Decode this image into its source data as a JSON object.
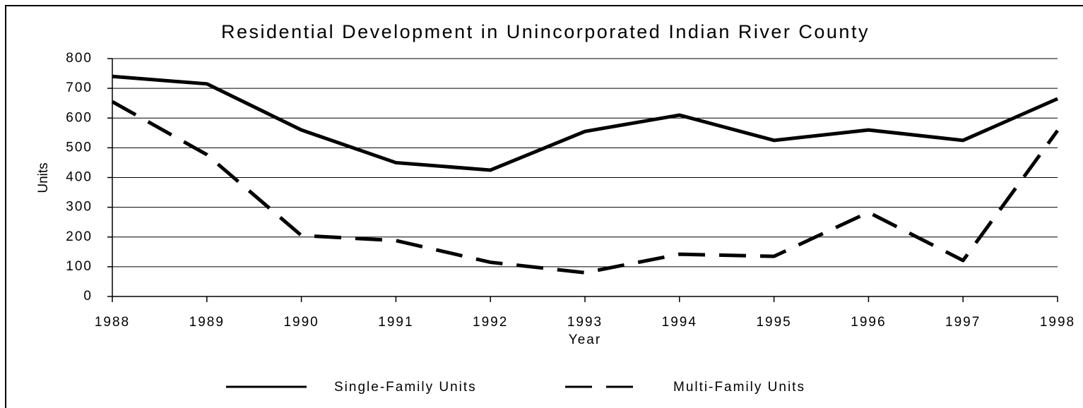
{
  "chart_data": {
    "type": "line",
    "title": "Residential Development in Unincorporated Indian River County",
    "x_label": "Year",
    "y_label": "Units",
    "x": [
      1988,
      1989,
      1990,
      1991,
      1992,
      1993,
      1994,
      1995,
      1996,
      1997,
      1998
    ],
    "series": [
      {
        "name": "Single-Family Units",
        "color": "#000000",
        "dash": "solid",
        "values": [
          740,
          715,
          560,
          450,
          425,
          555,
          610,
          525,
          560,
          525,
          665
        ]
      },
      {
        "name": "Multi-Family Units",
        "color": "#000000",
        "dash": "dashed",
        "values": [
          655,
          477,
          205,
          188,
          115,
          80,
          142,
          135,
          283,
          121,
          558
        ]
      }
    ],
    "xlim": [
      1988,
      1998
    ],
    "xticks": [
      1988,
      1989,
      1990,
      1991,
      1992,
      1993,
      1994,
      1995,
      1996,
      1997,
      1998
    ],
    "ylim": [
      0,
      800
    ],
    "yticks": [
      0,
      100,
      200,
      300,
      400,
      500,
      600,
      700,
      800
    ],
    "grid": true,
    "legend": "bottom"
  }
}
